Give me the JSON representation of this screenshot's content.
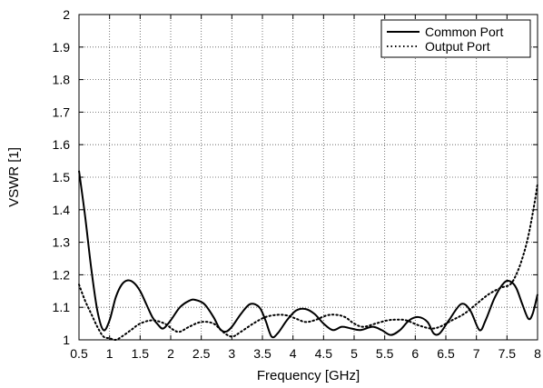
{
  "chart_data": {
    "type": "line",
    "title": "",
    "xlabel": "Frequency [GHz]",
    "ylabel": "VSWR [1]",
    "xlim": [
      0.5,
      8
    ],
    "ylim": [
      1,
      2
    ],
    "xticks": [
      0.5,
      1,
      1.5,
      2,
      2.5,
      3,
      3.5,
      4,
      4.5,
      5,
      5.5,
      6,
      6.5,
      7,
      7.5,
      8
    ],
    "xtick_labels": [
      "0.5",
      "1",
      "1.5",
      "2",
      "2.5",
      "3",
      "3.5",
      "4",
      "4.5",
      "5",
      "5.5",
      "6",
      "6.5",
      "7",
      "7.5",
      "8"
    ],
    "yticks": [
      1,
      1.1,
      1.2,
      1.3,
      1.4,
      1.5,
      1.6,
      1.7,
      1.8,
      1.9,
      2
    ],
    "ytick_labels": [
      "1",
      "1.1",
      "1.2",
      "1.3",
      "1.4",
      "1.5",
      "1.6",
      "1.7",
      "1.8",
      "1.9",
      "2"
    ],
    "grid": true,
    "legend": "top-right",
    "series": [
      {
        "name": "Common Port",
        "style": "solid",
        "color": "#000000",
        "points": [
          [
            0.5,
            1.52
          ],
          [
            0.6,
            1.38
          ],
          [
            0.7,
            1.22
          ],
          [
            0.8,
            1.09
          ],
          [
            0.9,
            1.03
          ],
          [
            1.0,
            1.06
          ],
          [
            1.1,
            1.13
          ],
          [
            1.2,
            1.17
          ],
          [
            1.3,
            1.183
          ],
          [
            1.4,
            1.175
          ],
          [
            1.5,
            1.15
          ],
          [
            1.6,
            1.11
          ],
          [
            1.7,
            1.07
          ],
          [
            1.8,
            1.045
          ],
          [
            1.88,
            1.035
          ],
          [
            2.0,
            1.06
          ],
          [
            2.15,
            1.1
          ],
          [
            2.3,
            1.12
          ],
          [
            2.4,
            1.123
          ],
          [
            2.55,
            1.11
          ],
          [
            2.7,
            1.07
          ],
          [
            2.8,
            1.035
          ],
          [
            2.9,
            1.025
          ],
          [
            3.0,
            1.04
          ],
          [
            3.15,
            1.08
          ],
          [
            3.3,
            1.11
          ],
          [
            3.45,
            1.1
          ],
          [
            3.55,
            1.06
          ],
          [
            3.65,
            1.01
          ],
          [
            3.75,
            1.02
          ],
          [
            3.9,
            1.06
          ],
          [
            4.05,
            1.09
          ],
          [
            4.2,
            1.095
          ],
          [
            4.35,
            1.08
          ],
          [
            4.5,
            1.05
          ],
          [
            4.65,
            1.03
          ],
          [
            4.8,
            1.04
          ],
          [
            4.95,
            1.035
          ],
          [
            5.1,
            1.03
          ],
          [
            5.3,
            1.04
          ],
          [
            5.45,
            1.03
          ],
          [
            5.6,
            1.015
          ],
          [
            5.75,
            1.03
          ],
          [
            5.9,
            1.06
          ],
          [
            6.05,
            1.07
          ],
          [
            6.2,
            1.055
          ],
          [
            6.3,
            1.02
          ],
          [
            6.4,
            1.02
          ],
          [
            6.55,
            1.06
          ],
          [
            6.75,
            1.11
          ],
          [
            6.9,
            1.09
          ],
          [
            7.05,
            1.03
          ],
          [
            7.15,
            1.06
          ],
          [
            7.3,
            1.13
          ],
          [
            7.45,
            1.175
          ],
          [
            7.55,
            1.18
          ],
          [
            7.65,
            1.16
          ],
          [
            7.75,
            1.11
          ],
          [
            7.85,
            1.065
          ],
          [
            7.92,
            1.08
          ],
          [
            8.0,
            1.14
          ]
        ]
      },
      {
        "name": "Output Port",
        "style": "dotted",
        "color": "#000000",
        "points": [
          [
            0.5,
            1.17
          ],
          [
            0.6,
            1.12
          ],
          [
            0.7,
            1.08
          ],
          [
            0.8,
            1.04
          ],
          [
            0.9,
            1.01
          ],
          [
            1.0,
            1.005
          ],
          [
            1.1,
            1.0
          ],
          [
            1.2,
            1.01
          ],
          [
            1.35,
            1.03
          ],
          [
            1.5,
            1.05
          ],
          [
            1.7,
            1.06
          ],
          [
            1.9,
            1.05
          ],
          [
            2.05,
            1.03
          ],
          [
            2.15,
            1.025
          ],
          [
            2.3,
            1.04
          ],
          [
            2.5,
            1.055
          ],
          [
            2.7,
            1.05
          ],
          [
            2.85,
            1.025
          ],
          [
            3.0,
            1.01
          ],
          [
            3.15,
            1.025
          ],
          [
            3.35,
            1.05
          ],
          [
            3.55,
            1.07
          ],
          [
            3.75,
            1.077
          ],
          [
            3.9,
            1.075
          ],
          [
            4.05,
            1.065
          ],
          [
            4.2,
            1.055
          ],
          [
            4.35,
            1.06
          ],
          [
            4.55,
            1.075
          ],
          [
            4.7,
            1.077
          ],
          [
            4.85,
            1.07
          ],
          [
            5.0,
            1.05
          ],
          [
            5.15,
            1.04
          ],
          [
            5.35,
            1.05
          ],
          [
            5.55,
            1.06
          ],
          [
            5.7,
            1.062
          ],
          [
            5.85,
            1.06
          ],
          [
            6.05,
            1.045
          ],
          [
            6.25,
            1.035
          ],
          [
            6.4,
            1.04
          ],
          [
            6.6,
            1.06
          ],
          [
            6.8,
            1.08
          ],
          [
            7.0,
            1.11
          ],
          [
            7.2,
            1.14
          ],
          [
            7.4,
            1.16
          ],
          [
            7.55,
            1.17
          ],
          [
            7.65,
            1.2
          ],
          [
            7.75,
            1.25
          ],
          [
            7.85,
            1.32
          ],
          [
            7.95,
            1.42
          ],
          [
            8.0,
            1.48
          ]
        ]
      }
    ]
  }
}
